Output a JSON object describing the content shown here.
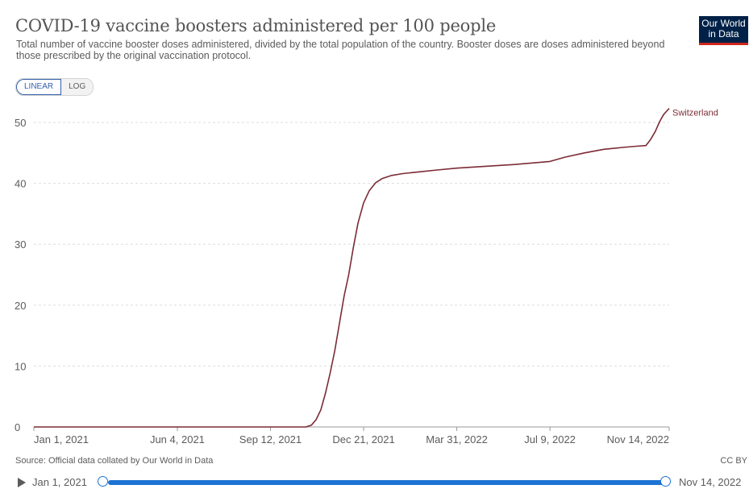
{
  "header": {
    "title": "COVID-19 vaccine boosters administered per 100 people",
    "subtitle": "Total number of vaccine booster doses administered, divided by the total population of the country. Booster doses are doses administered beyond those prescribed by the original vaccination protocol.",
    "logo_line1": "Our World",
    "logo_line2": "in Data"
  },
  "controls": {
    "linear_label": "LINEAR",
    "log_label": "LOG",
    "active_scale": "linear"
  },
  "footer": {
    "source": "Source: Official data collated by Our World in Data",
    "license": "CC BY"
  },
  "timeline": {
    "start_label": "Jan 1, 2021",
    "end_label": "Nov 14, 2022"
  },
  "colors": {
    "series_line": "#7b2b35",
    "grid": "#dddddd",
    "text": "#5b5b5b",
    "accent_blue": "#1d73d3",
    "logo_bg": "#002147",
    "logo_bar": "#ce261e"
  },
  "chart_data": {
    "type": "line",
    "title": "COVID-19 vaccine boosters administered per 100 people",
    "ylabel": "",
    "xlabel": "",
    "ylim": [
      0,
      52
    ],
    "xlim": [
      "2021-01-01",
      "2022-11-14"
    ],
    "y_ticks": [
      0,
      10,
      20,
      30,
      40,
      50
    ],
    "x_ticks": [
      {
        "date": "2021-01-01",
        "label": "Jan 1, 2021"
      },
      {
        "date": "2021-06-04",
        "label": "Jun 4, 2021"
      },
      {
        "date": "2021-09-12",
        "label": "Sep 12, 2021"
      },
      {
        "date": "2021-12-21",
        "label": "Dec 21, 2021"
      },
      {
        "date": "2022-03-31",
        "label": "Mar 31, 2022"
      },
      {
        "date": "2022-07-09",
        "label": "Jul 9, 2022"
      },
      {
        "date": "2022-11-14",
        "label": "Nov 14, 2022"
      }
    ],
    "grid": true,
    "series": [
      {
        "name": "Switzerland",
        "points": [
          [
            "2021-01-01",
            0
          ],
          [
            "2021-06-01",
            0
          ],
          [
            "2021-09-12",
            0
          ],
          [
            "2021-10-20",
            0
          ],
          [
            "2021-10-26",
            0.3
          ],
          [
            "2021-10-31",
            1.2
          ],
          [
            "2021-11-05",
            2.8
          ],
          [
            "2021-11-10",
            5.5
          ],
          [
            "2021-11-15",
            8.8
          ],
          [
            "2021-11-20",
            12.5
          ],
          [
            "2021-11-25",
            17.0
          ],
          [
            "2021-11-30",
            21.5
          ],
          [
            "2021-12-05",
            25.0
          ],
          [
            "2021-12-10",
            29.5
          ],
          [
            "2021-12-15",
            33.5
          ],
          [
            "2021-12-21",
            36.8
          ],
          [
            "2021-12-27",
            38.8
          ],
          [
            "2022-01-03",
            40.1
          ],
          [
            "2022-01-10",
            40.8
          ],
          [
            "2022-01-20",
            41.3
          ],
          [
            "2022-02-01",
            41.6
          ],
          [
            "2022-02-20",
            41.9
          ],
          [
            "2022-03-10",
            42.2
          ],
          [
            "2022-03-31",
            42.5
          ],
          [
            "2022-05-01",
            42.8
          ],
          [
            "2022-06-01",
            43.1
          ],
          [
            "2022-07-09",
            43.6
          ],
          [
            "2022-07-25",
            44.3
          ],
          [
            "2022-08-15",
            45.0
          ],
          [
            "2022-09-05",
            45.6
          ],
          [
            "2022-09-25",
            45.9
          ],
          [
            "2022-10-10",
            46.1
          ],
          [
            "2022-10-20",
            46.2
          ],
          [
            "2022-10-25",
            47.2
          ],
          [
            "2022-10-30",
            48.5
          ],
          [
            "2022-11-04",
            50.2
          ],
          [
            "2022-11-08",
            51.3
          ],
          [
            "2022-11-11",
            51.8
          ],
          [
            "2022-11-14",
            52.3
          ]
        ]
      }
    ]
  }
}
